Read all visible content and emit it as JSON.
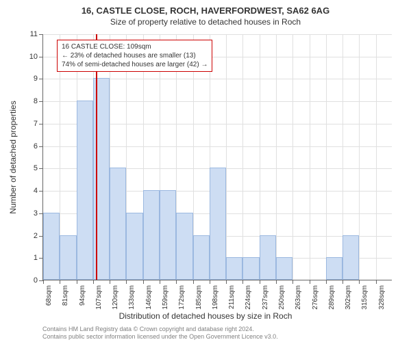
{
  "title": "16, CASTLE CLOSE, ROCH, HAVERFORDWEST, SA62 6AG",
  "subtitle": "Size of property relative to detached houses in Roch",
  "chart": {
    "type": "histogram",
    "y_axis_title": "Number of detached properties",
    "x_axis_title": "Distribution of detached houses by size in Roch",
    "ylim": [
      0,
      11
    ],
    "ytick_step": 1,
    "bar_color": "#cdddf3",
    "bar_border_color": "#9bb8e0",
    "background_color": "#ffffff",
    "grid_color": "#e0e0e0",
    "marker_color": "#cc0000",
    "marker_x_value": 109,
    "x_start": 68,
    "x_step": 13,
    "x_labels": [
      "68sqm",
      "81sqm",
      "94sqm",
      "107sqm",
      "120sqm",
      "133sqm",
      "146sqm",
      "159sqm",
      "172sqm",
      "185sqm",
      "198sqm",
      "211sqm",
      "224sqm",
      "237sqm",
      "250sqm",
      "263sqm",
      "276sqm",
      "289sqm",
      "302sqm",
      "315sqm",
      "328sqm"
    ],
    "values": [
      3,
      2,
      8,
      9,
      5,
      3,
      4,
      4,
      3,
      2,
      5,
      1,
      1,
      2,
      1,
      0,
      0,
      1,
      2,
      0,
      0
    ]
  },
  "annotation": {
    "line1": "16 CASTLE CLOSE: 109sqm",
    "line2": "← 23% of detached houses are smaller (13)",
    "line3": "74% of semi-detached houses are larger (42) →"
  },
  "footer": {
    "line1": "Contains HM Land Registry data © Crown copyright and database right 2024.",
    "line2": "Contains public sector information licensed under the Open Government Licence v3.0."
  }
}
